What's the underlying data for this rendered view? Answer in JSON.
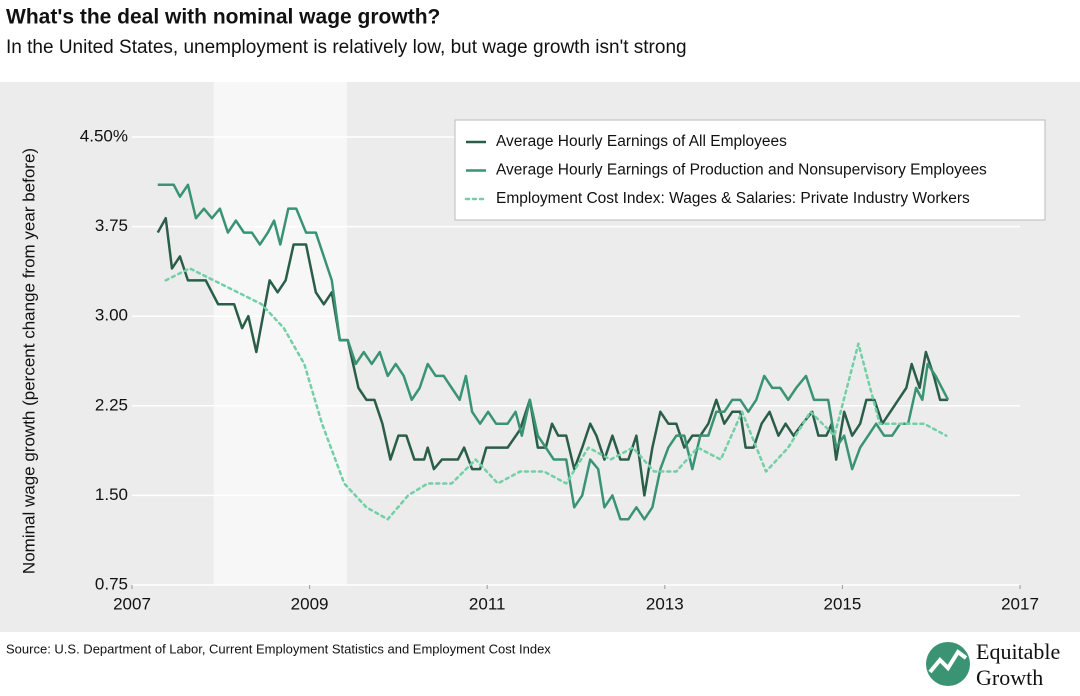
{
  "chart_data": {
    "type": "line",
    "title": "What's the deal with nominal wage growth?",
    "subtitle": "In the United States, unemployment is relatively low, but wage growth isn't strong",
    "ylabel": "Nominal wage growth (percent change from year before)",
    "source": "Source: U.S. Department of Labor, Current Employment Statistics and Employment Cost Index",
    "xlim": [
      2007,
      2017
    ],
    "xticks": [
      2007,
      2009,
      2011,
      2013,
      2015,
      2017
    ],
    "ylim": [
      0.75,
      4.5
    ],
    "yticks": [
      0.75,
      {
        "value": 1.5,
        "label": "1.50"
      },
      2.25,
      {
        "value": 3,
        "label": "3.00"
      },
      3.75,
      {
        "value": 4.5,
        "label": "4.50%"
      }
    ],
    "grid": true,
    "legend": "upper right",
    "shaded_region": [
      2007.92,
      2009.42
    ],
    "series": [
      {
        "name": "Average Hourly Earnings of All Employees",
        "color": "#2b5e48",
        "style": "solid",
        "x": [
          2007.29,
          2007.38,
          2007.45,
          2007.54,
          2007.63,
          2007.83,
          2007.97,
          2008.15,
          2008.24,
          2008.31,
          2008.4,
          2008.55,
          2008.64,
          2008.73,
          2008.82,
          2008.96,
          2009.07,
          2009.16,
          2009.25,
          2009.34,
          2009.43,
          2009.55,
          2009.64,
          2009.73,
          2009.82,
          2009.91,
          2010.0,
          2010.09,
          2010.18,
          2010.29,
          2010.33,
          2010.4,
          2010.49,
          2010.67,
          2010.74,
          2010.83,
          2010.92,
          2010.99,
          2011.23,
          2011.37,
          2011.48,
          2011.57,
          2011.66,
          2011.73,
          2011.8,
          2011.89,
          2011.98,
          2012.07,
          2012.16,
          2012.23,
          2012.32,
          2012.41,
          2012.5,
          2012.59,
          2012.68,
          2012.77,
          2012.86,
          2012.95,
          2013.04,
          2013.13,
          2013.22,
          2013.31,
          2013.4,
          2013.49,
          2013.58,
          2013.67,
          2013.76,
          2013.85,
          2013.91,
          2014.0,
          2014.09,
          2014.18,
          2014.28,
          2014.36,
          2014.45,
          2014.55,
          2014.66,
          2014.73,
          2014.82,
          2014.88,
          2014.93,
          2015.02,
          2015.11,
          2015.2,
          2015.27,
          2015.36,
          2015.45,
          2015.54,
          2015.63,
          2015.72,
          2015.78,
          2015.87,
          2015.94,
          2016.03,
          2016.1,
          2016.19
        ],
        "values": [
          3.7,
          3.82,
          3.4,
          3.5,
          3.3,
          3.3,
          3.1,
          3.1,
          2.9,
          3.0,
          2.7,
          3.3,
          3.2,
          3.3,
          3.6,
          3.6,
          3.2,
          3.1,
          3.2,
          2.8,
          2.8,
          2.4,
          2.3,
          2.3,
          2.1,
          1.8,
          2.0,
          2.0,
          1.8,
          1.8,
          1.9,
          1.72,
          1.8,
          1.8,
          1.9,
          1.72,
          1.72,
          1.9,
          1.9,
          2.05,
          2.3,
          1.9,
          1.9,
          2.1,
          2.0,
          2.0,
          1.72,
          1.9,
          2.1,
          2.0,
          1.8,
          2.0,
          1.8,
          1.8,
          2.0,
          1.5,
          1.9,
          2.2,
          2.1,
          2.1,
          1.9,
          2.0,
          2.0,
          2.1,
          2.3,
          2.1,
          2.2,
          2.2,
          1.9,
          1.9,
          2.1,
          2.2,
          2.0,
          2.1,
          2.0,
          2.1,
          2.2,
          2.0,
          2.0,
          2.1,
          1.8,
          2.2,
          2.0,
          2.1,
          2.3,
          2.3,
          2.1,
          2.2,
          2.3,
          2.4,
          2.6,
          2.4,
          2.7,
          2.5,
          2.3,
          2.3
        ]
      },
      {
        "name": "Average Hourly Earnings of Production and Nonsupervisory Employees",
        "color": "#3a9474",
        "style": "solid",
        "x": [
          2007.29,
          2007.47,
          2007.54,
          2007.63,
          2007.72,
          2007.81,
          2007.9,
          2007.99,
          2008.08,
          2008.17,
          2008.26,
          2008.35,
          2008.44,
          2008.53,
          2008.6,
          2008.67,
          2008.76,
          2008.85,
          2008.96,
          2009.07,
          2009.16,
          2009.25,
          2009.34,
          2009.43,
          2009.52,
          2009.61,
          2009.7,
          2009.79,
          2009.88,
          2009.97,
          2010.06,
          2010.15,
          2010.24,
          2010.33,
          2010.42,
          2010.51,
          2010.6,
          2010.69,
          2010.76,
          2010.83,
          2010.92,
          2011.01,
          2011.1,
          2011.23,
          2011.32,
          2011.39,
          2011.48,
          2011.57,
          2011.66,
          2011.75,
          2011.89,
          2011.98,
          2012.07,
          2012.16,
          2012.25,
          2012.32,
          2012.41,
          2012.5,
          2012.59,
          2012.68,
          2012.77,
          2012.86,
          2012.95,
          2013.04,
          2013.13,
          2013.22,
          2013.31,
          2013.4,
          2013.49,
          2013.58,
          2013.67,
          2013.76,
          2013.85,
          2013.94,
          2014.03,
          2014.12,
          2014.21,
          2014.3,
          2014.39,
          2014.48,
          2014.59,
          2014.68,
          2014.84,
          2014.93,
          2015.02,
          2015.11,
          2015.2,
          2015.29,
          2015.38,
          2015.47,
          2015.56,
          2015.65,
          2015.74,
          2015.83,
          2015.9,
          2015.96,
          2016.05,
          2016.19
        ],
        "values": [
          4.1,
          4.1,
          4.0,
          4.1,
          3.82,
          3.9,
          3.82,
          3.9,
          3.7,
          3.8,
          3.7,
          3.7,
          3.6,
          3.7,
          3.8,
          3.6,
          3.9,
          3.9,
          3.7,
          3.7,
          3.5,
          3.3,
          2.8,
          2.8,
          2.6,
          2.7,
          2.6,
          2.7,
          2.5,
          2.6,
          2.5,
          2.3,
          2.4,
          2.6,
          2.5,
          2.5,
          2.4,
          2.3,
          2.5,
          2.2,
          2.1,
          2.2,
          2.1,
          2.1,
          2.2,
          2.0,
          2.3,
          2.0,
          1.9,
          1.8,
          1.8,
          1.4,
          1.5,
          1.8,
          1.72,
          1.4,
          1.5,
          1.3,
          1.3,
          1.4,
          1.3,
          1.4,
          1.72,
          1.9,
          2.0,
          2.0,
          1.72,
          2.0,
          2.0,
          2.2,
          2.2,
          2.3,
          2.3,
          2.2,
          2.3,
          2.5,
          2.4,
          2.4,
          2.3,
          2.4,
          2.5,
          2.3,
          2.3,
          1.9,
          2.0,
          1.72,
          1.9,
          2.0,
          2.1,
          2.0,
          2.0,
          2.1,
          2.1,
          2.4,
          2.3,
          2.6,
          2.5,
          2.3
        ]
      },
      {
        "name": "Employment Cost Index: Wages & Salaries: Private Industry Workers",
        "color": "#72cfa6",
        "style": "dotted",
        "x": [
          2007.38,
          2007.65,
          2007.92,
          2008.19,
          2008.46,
          2008.71,
          2008.94,
          2009.14,
          2009.39,
          2009.64,
          2009.88,
          2010.11,
          2010.33,
          2010.6,
          2010.87,
          2011.12,
          2011.37,
          2011.64,
          2011.89,
          2012.14,
          2012.39,
          2012.64,
          2012.88,
          2013.13,
          2013.37,
          2013.63,
          2013.87,
          2014.14,
          2014.39,
          2014.64,
          2014.91,
          2015.18,
          2015.42,
          2015.67,
          2015.92,
          2016.17
        ],
        "values": [
          3.3,
          3.4,
          3.3,
          3.2,
          3.1,
          2.9,
          2.6,
          2.1,
          1.6,
          1.4,
          1.3,
          1.5,
          1.6,
          1.6,
          1.8,
          1.6,
          1.7,
          1.7,
          1.6,
          1.9,
          1.8,
          1.9,
          1.7,
          1.7,
          1.9,
          1.8,
          2.2,
          1.7,
          1.9,
          2.2,
          2.0,
          2.77,
          2.1,
          2.1,
          2.1,
          2.0
        ]
      }
    ]
  },
  "logo": [
    "Equitable",
    "Growth"
  ]
}
